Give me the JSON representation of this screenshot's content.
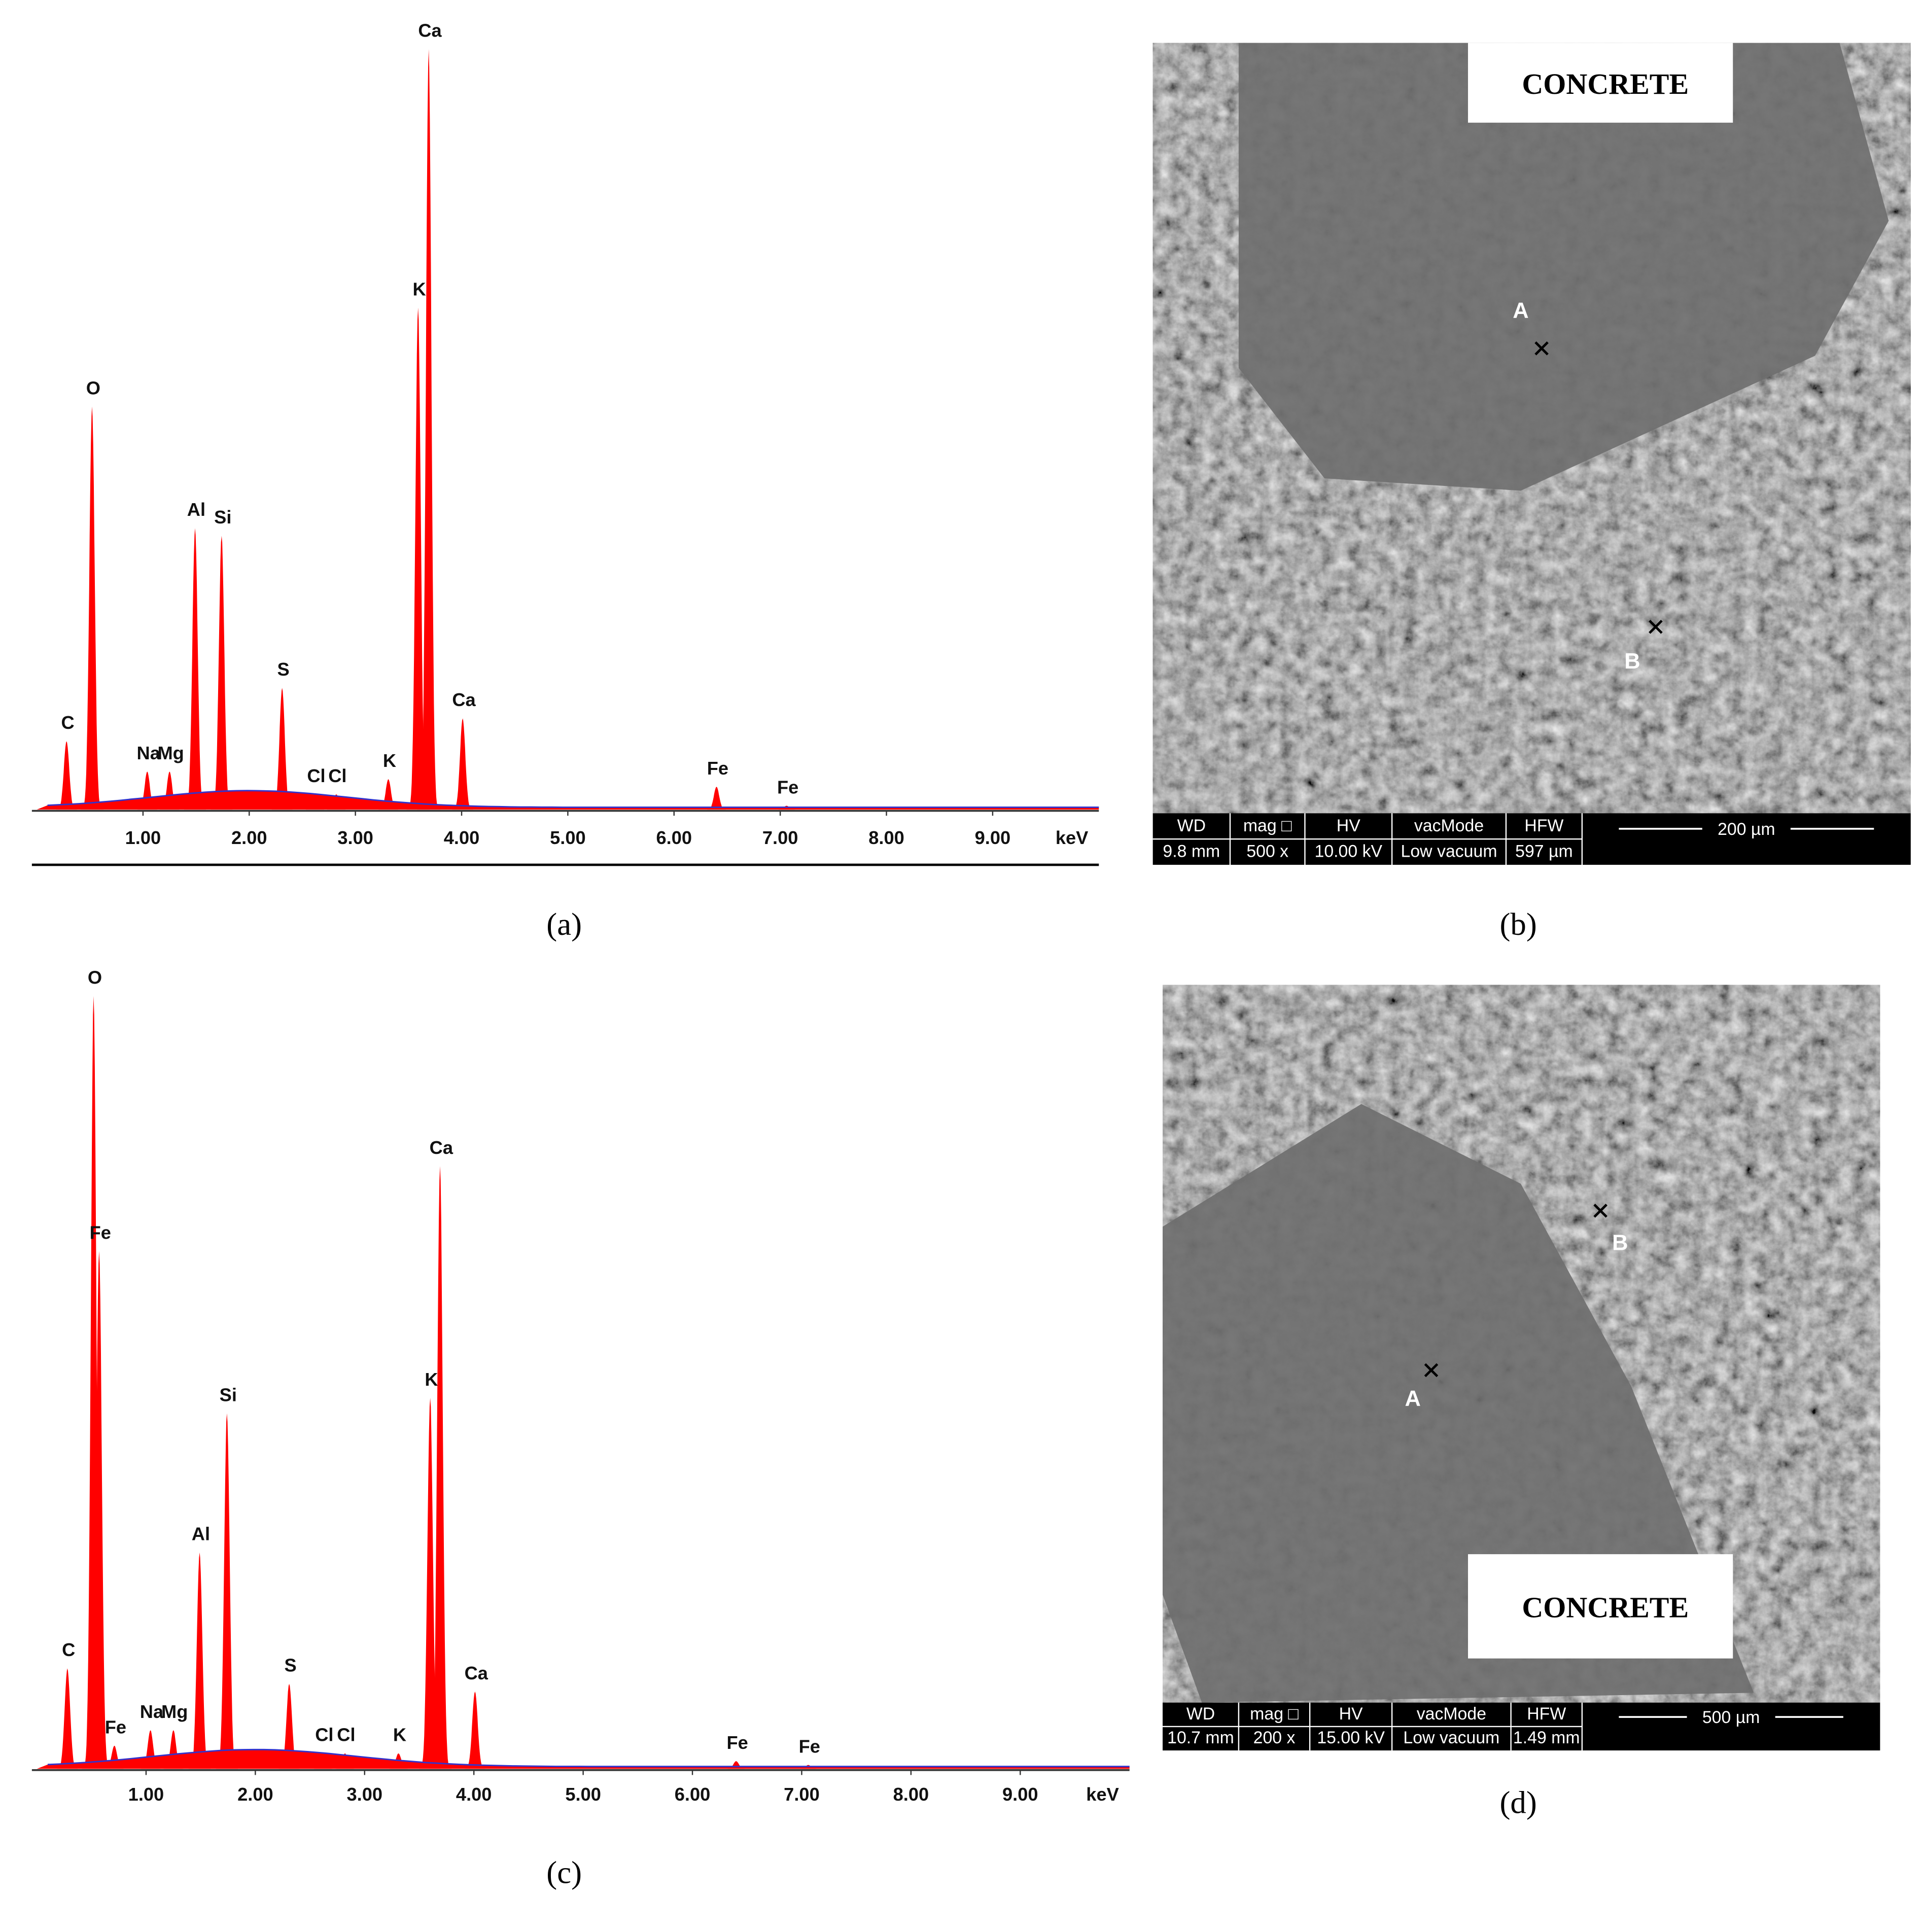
{
  "chart_data": [
    {
      "type": "spectrum",
      "caption": "(a)",
      "xlabel": "keV",
      "color": "#ff0000",
      "baseline_color": "#3333cc",
      "xlim": [
        0,
        10
      ],
      "ylim": [
        0,
        100
      ],
      "xticks": [
        {
          "value": 1,
          "label": "1.00"
        },
        {
          "value": 2,
          "label": "2.00"
        },
        {
          "value": 3,
          "label": "3.00"
        },
        {
          "value": 4,
          "label": "4.00"
        },
        {
          "value": 5,
          "label": "5.00"
        },
        {
          "value": 6,
          "label": "6.00"
        },
        {
          "value": 7,
          "label": "7.00"
        },
        {
          "value": 8,
          "label": "8.00"
        },
        {
          "value": 9,
          "label": "9.00"
        }
      ],
      "peaks": [
        {
          "label": "C",
          "x": 0.28,
          "height": 9
        },
        {
          "label": "O",
          "x": 0.52,
          "height": 53
        },
        {
          "label": "Na",
          "x": 1.04,
          "height": 5
        },
        {
          "label": "Mg",
          "x": 1.25,
          "height": 5
        },
        {
          "label": "Al",
          "x": 1.49,
          "height": 37
        },
        {
          "label": "Si",
          "x": 1.74,
          "height": 36
        },
        {
          "label": "S",
          "x": 2.31,
          "height": 16
        },
        {
          "label": "Cl",
          "x": 2.62,
          "height": 2
        },
        {
          "label": "Cl",
          "x": 2.82,
          "height": 2
        },
        {
          "label": "K",
          "x": 3.31,
          "height": 4
        },
        {
          "label": "K",
          "x": 3.59,
          "height": 66
        },
        {
          "label": "Ca",
          "x": 3.69,
          "height": 100
        },
        {
          "label": "Ca",
          "x": 4.01,
          "height": 12
        },
        {
          "label": "Fe",
          "x": 6.4,
          "height": 3
        },
        {
          "label": "Fe",
          "x": 7.06,
          "height": 0.5
        }
      ]
    },
    {
      "type": "spectrum",
      "caption": "(c)",
      "xlabel": "keV",
      "color": "#ff0000",
      "baseline_color": "#3333cc",
      "xlim": [
        0,
        10
      ],
      "ylim": [
        0,
        100
      ],
      "xticks": [
        {
          "value": 1,
          "label": "1.00"
        },
        {
          "value": 2,
          "label": "2.00"
        },
        {
          "value": 3,
          "label": "3.00"
        },
        {
          "value": 4,
          "label": "4.00"
        },
        {
          "value": 5,
          "label": "5.00"
        },
        {
          "value": 6,
          "label": "6.00"
        },
        {
          "value": 7,
          "label": "7.00"
        },
        {
          "value": 8,
          "label": "8.00"
        },
        {
          "value": 9,
          "label": "9.00"
        }
      ],
      "peaks": [
        {
          "label": "C",
          "x": 0.28,
          "height": 13
        },
        {
          "label": "O",
          "x": 0.52,
          "height": 100
        },
        {
          "label": "Fe",
          "x": 0.57,
          "height": 67
        },
        {
          "label": "Fe",
          "x": 0.71,
          "height": 3
        },
        {
          "label": "Na",
          "x": 1.04,
          "height": 5
        },
        {
          "label": "Mg",
          "x": 1.25,
          "height": 5
        },
        {
          "label": "Al",
          "x": 1.49,
          "height": 28
        },
        {
          "label": "Si",
          "x": 1.74,
          "height": 46
        },
        {
          "label": "S",
          "x": 2.31,
          "height": 11
        },
        {
          "label": "Cl",
          "x": 2.62,
          "height": 2
        },
        {
          "label": "Cl",
          "x": 2.82,
          "height": 2
        },
        {
          "label": "K",
          "x": 3.31,
          "height": 2
        },
        {
          "label": "K",
          "x": 3.6,
          "height": 48
        },
        {
          "label": "Ca",
          "x": 3.69,
          "height": 78
        },
        {
          "label": "Ca",
          "x": 4.01,
          "height": 10
        },
        {
          "label": "Fe",
          "x": 6.4,
          "height": 1
        },
        {
          "label": "Fe",
          "x": 7.06,
          "height": 0.5
        }
      ]
    }
  ],
  "images": [
    {
      "caption": "(b)",
      "overlay": "CONCRETE",
      "points": [
        "A",
        "B"
      ],
      "info_header": [
        "WD",
        "mag □",
        "HV",
        "vacMode",
        "HFW"
      ],
      "info_values": [
        "9.8 mm",
        "500 x",
        "10.00 kV",
        "Low vacuum",
        "597 µm"
      ],
      "scale": "200 µm"
    },
    {
      "caption": "(d)",
      "overlay": "CONCRETE",
      "points": [
        "A",
        "B"
      ],
      "info_header": [
        "WD",
        "mag □",
        "HV",
        "vacMode",
        "HFW"
      ],
      "info_values": [
        "10.7 mm",
        "200 x",
        "15.00 kV",
        "Low vacuum",
        "1.49 mm"
      ],
      "scale": "500 µm"
    }
  ]
}
